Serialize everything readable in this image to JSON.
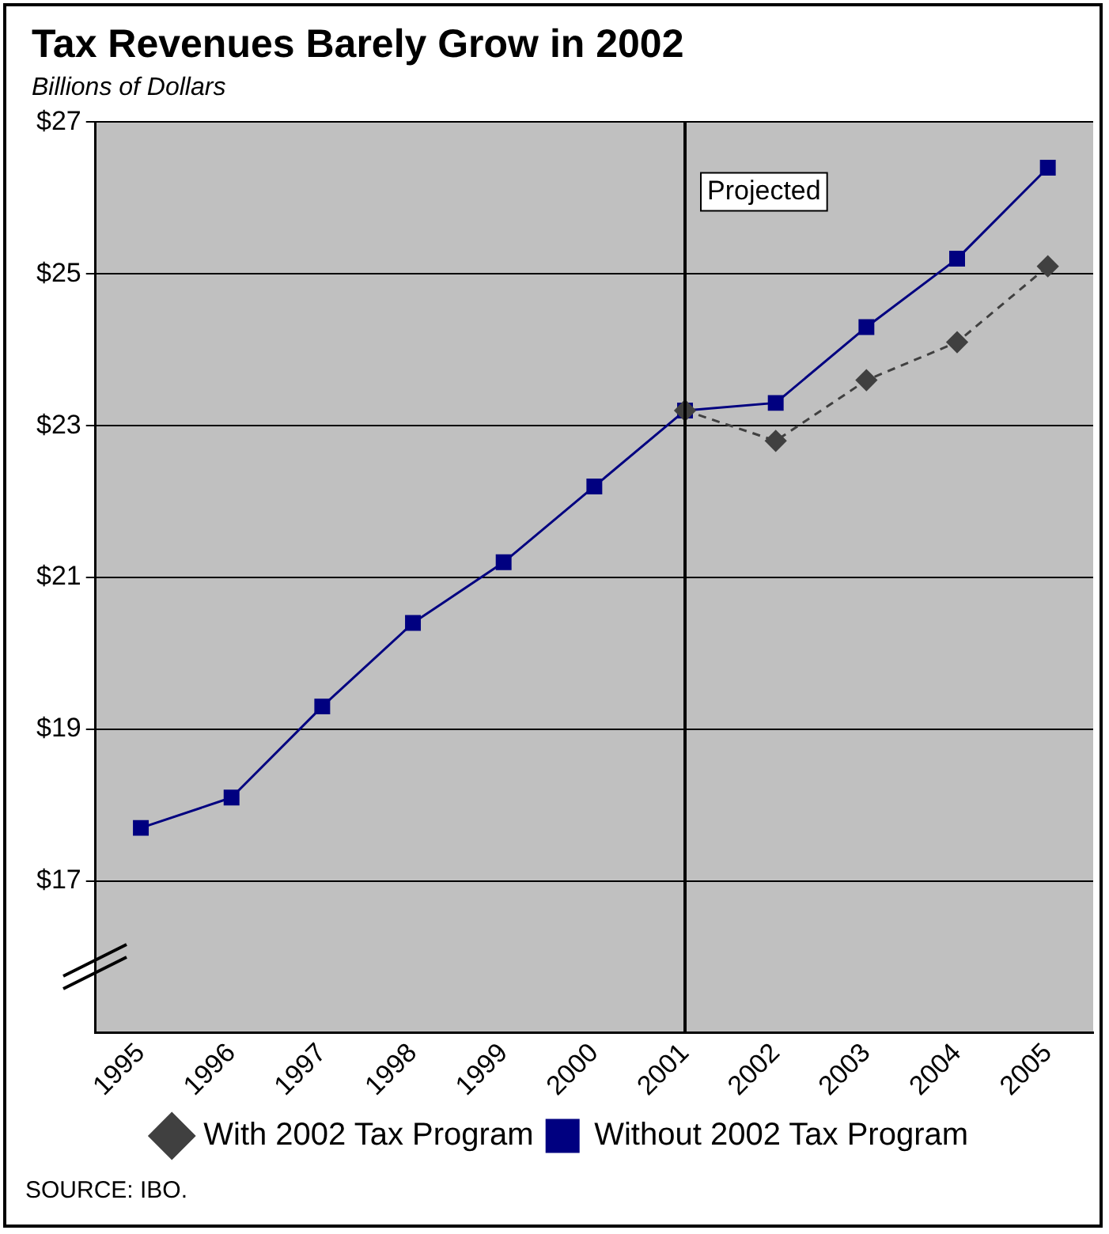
{
  "chart_data": {
    "type": "line",
    "title": "Tax Revenues Barely Grow in 2002",
    "subtitle": "Billions of Dollars",
    "categories": [
      "1995",
      "1996",
      "1997",
      "1998",
      "1999",
      "2000",
      "2001",
      "2002",
      "2003",
      "2004",
      "2005"
    ],
    "series": [
      {
        "name": "Without 2002 Tax Program",
        "color": "#000080",
        "marker": "square",
        "line_style": "solid",
        "values": [
          17.7,
          18.1,
          19.3,
          20.4,
          21.2,
          22.2,
          23.2,
          23.3,
          24.3,
          25.2,
          26.4
        ]
      },
      {
        "name": "With 2002 Tax Program",
        "color": "#404040",
        "marker": "diamond",
        "line_style": "dashed",
        "values": [
          null,
          null,
          null,
          null,
          null,
          null,
          23.2,
          22.8,
          23.6,
          24.1,
          25.1
        ]
      }
    ],
    "ylim": [
      15,
      27
    ],
    "yticks": [
      {
        "value": 17,
        "label": "$17"
      },
      {
        "value": 19,
        "label": "$19"
      },
      {
        "value": 21,
        "label": "$21"
      },
      {
        "value": 23,
        "label": "$23"
      },
      {
        "value": 25,
        "label": "$25"
      },
      {
        "value": 27,
        "label": "$27"
      }
    ],
    "grid": "y",
    "legend": "bottom",
    "ref_lines": [
      {
        "axis": "x",
        "value": "2001",
        "label": "Projected",
        "color": "#000000"
      }
    ],
    "annotations": [
      "SOURCE: IBO."
    ]
  }
}
